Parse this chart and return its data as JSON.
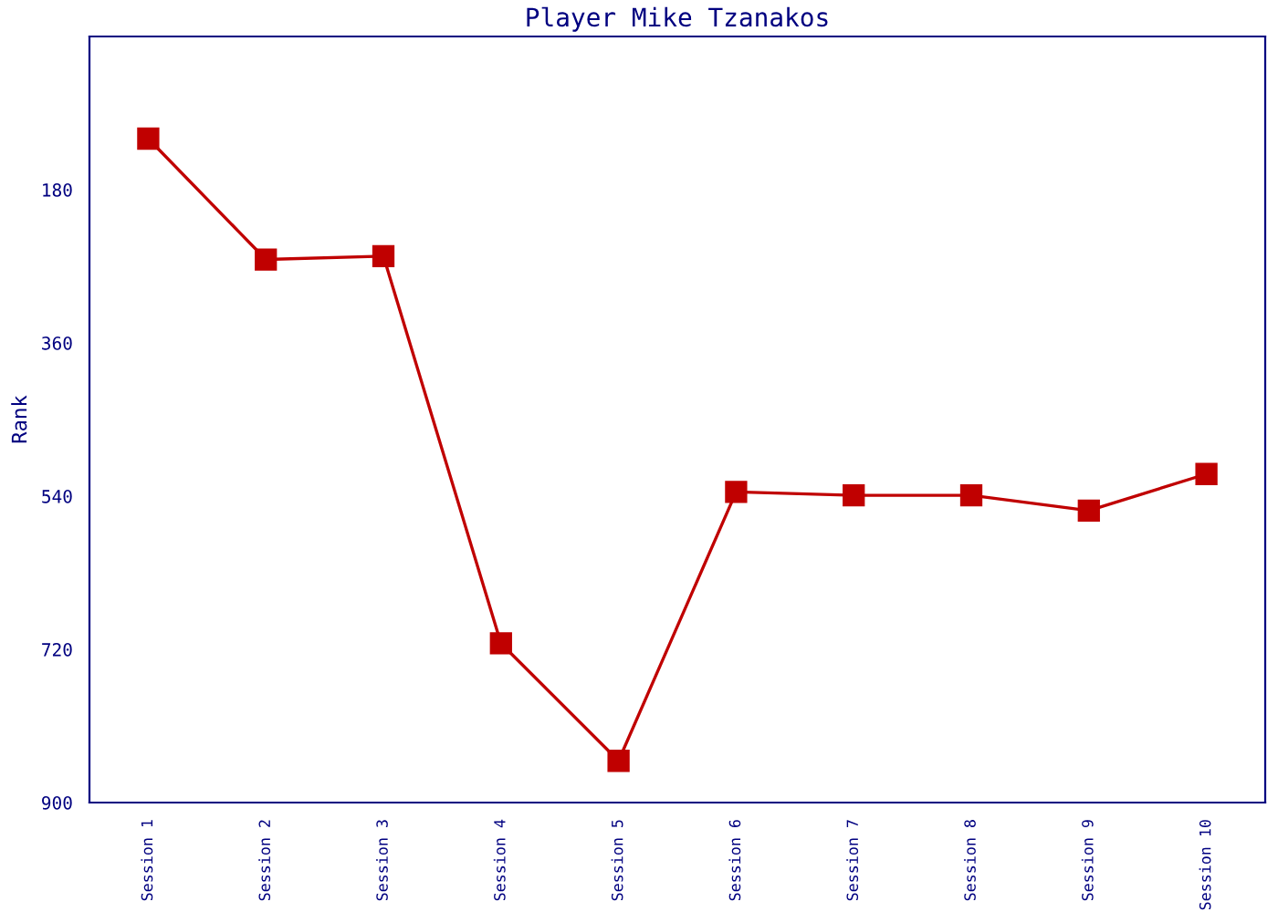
{
  "chart_data": {
    "type": "line",
    "title": "Player Mike Tzanakos",
    "ylabel": "Rank",
    "categories": [
      "Session 1",
      "Session 2",
      "Session 3",
      "Session 4",
      "Session 5",
      "Session 6",
      "Session 7",
      "Session 8",
      "Session 9",
      "Session 10"
    ],
    "series": [
      {
        "color": "#c00000",
        "values": [
          120,
          262,
          258,
          713,
          851,
          535,
          539,
          539,
          557,
          514
        ]
      }
    ],
    "ylim": [
      900,
      0
    ],
    "yticks": [
      180,
      360,
      540,
      720,
      900
    ],
    "marker": "square",
    "line_style": "solid",
    "grid": false
  }
}
